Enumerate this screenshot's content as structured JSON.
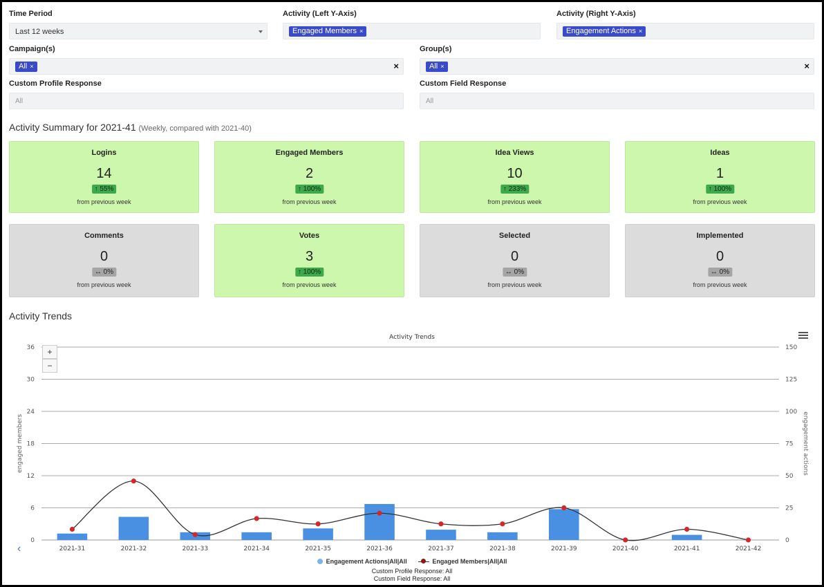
{
  "filters": {
    "time_period": {
      "label": "Time Period",
      "value": "Last 12 weeks"
    },
    "left_axis": {
      "label": "Activity (Left Y-Axis)",
      "tag": "Engaged Members"
    },
    "right_axis": {
      "label": "Activity (Right Y-Axis)",
      "tag": "Engagement Actions"
    },
    "campaigns": {
      "label": "Campaign(s)",
      "tag": "All"
    },
    "groups": {
      "label": "Group(s)",
      "tag": "All"
    },
    "custom_profile": {
      "label": "Custom Profile Response",
      "placeholder": "All"
    },
    "custom_field": {
      "label": "Custom Field Response",
      "placeholder": "All"
    },
    "tag_remove": "×",
    "clear": "×"
  },
  "summary": {
    "title": "Activity Summary for 2021-41",
    "subtitle": "(Weekly, compared with 2021-40)",
    "cards": [
      {
        "title": "Logins",
        "value": "14",
        "change": "↑ 55%",
        "note": "from previous week",
        "status": "green"
      },
      {
        "title": "Engaged Members",
        "value": "2",
        "change": "↑ 100%",
        "note": "from previous week",
        "status": "green"
      },
      {
        "title": "Idea Views",
        "value": "10",
        "change": "↑ 233%",
        "note": "from previous week",
        "status": "green"
      },
      {
        "title": "Ideas",
        "value": "1",
        "change": "↑ 100%",
        "note": "from previous week",
        "status": "green"
      },
      {
        "title": "Comments",
        "value": "0",
        "change": "↔ 0%",
        "note": "from previous week",
        "status": "grey"
      },
      {
        "title": "Votes",
        "value": "3",
        "change": "↑ 100%",
        "note": "from previous week",
        "status": "green"
      },
      {
        "title": "Selected",
        "value": "0",
        "change": "↔ 0%",
        "note": "from previous week",
        "status": "grey"
      },
      {
        "title": "Implemented",
        "value": "0",
        "change": "↔ 0%",
        "note": "from previous week",
        "status": "grey"
      }
    ]
  },
  "trends": {
    "section_title": "Activity Trends",
    "zoom_in": "+",
    "zoom_out": "−",
    "menu_icon": "hamburger-menu-icon",
    "nav_icon": "chevron-left-icon",
    "credits": [
      "Custom Profile Response: All",
      "Custom Field Response: All"
    ]
  },
  "chart_data": {
    "type": "bar",
    "title": "Activity Trends",
    "categories": [
      "2021-31",
      "2021-32",
      "2021-33",
      "2021-34",
      "2021-35",
      "2021-36",
      "2021-37",
      "2021-38",
      "2021-39",
      "2021-40",
      "2021-41",
      "2021-42"
    ],
    "series": [
      {
        "name": "Engagement Actions|All|All",
        "type": "bar",
        "axis": "right",
        "color": "#4a90e2",
        "values": [
          5,
          18,
          6,
          6,
          9,
          28,
          8,
          6,
          24,
          0,
          4,
          0
        ]
      },
      {
        "name": "Engaged Members|All|All",
        "type": "line",
        "axis": "left",
        "color": "#333333",
        "marker_color": "#d62728",
        "values": [
          2,
          11,
          1,
          4,
          3,
          5,
          3,
          3,
          6,
          0,
          2,
          0
        ]
      }
    ],
    "left_axis": {
      "label": "engaged members",
      "min": 0,
      "max": 36,
      "ticks": [
        0,
        6,
        12,
        18,
        24,
        30,
        36
      ]
    },
    "right_axis": {
      "label": "engagement actions",
      "min": 0,
      "max": 150,
      "ticks": [
        0,
        25,
        50,
        75,
        100,
        125,
        150
      ]
    },
    "grid": true,
    "legend": "bottom-center"
  }
}
